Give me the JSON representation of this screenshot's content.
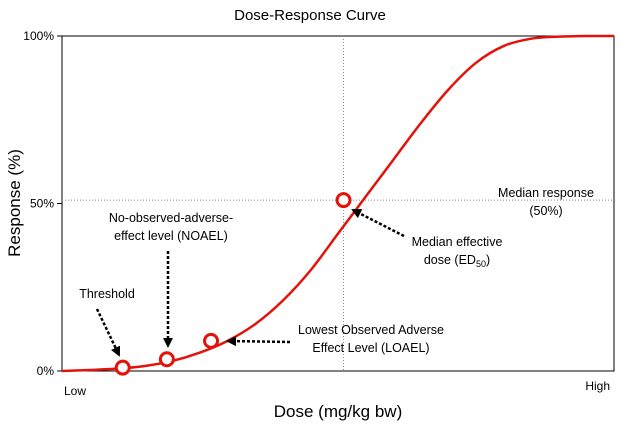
{
  "chart_data": {
    "type": "line",
    "title": "Dose-Response Curve",
    "xlabel": "Dose (mg/kg bw)",
    "ylabel": "Response (%)",
    "x_tick_labels": [
      "Low",
      "High"
    ],
    "y_ticks": [
      {
        "value": 0,
        "label": "0%"
      },
      {
        "value": 50,
        "label": "50%"
      },
      {
        "value": 100,
        "label": "100%"
      }
    ],
    "xlim": [
      0,
      100
    ],
    "ylim": [
      0,
      100
    ],
    "grid": false,
    "colors": {
      "curve": "#e3120b",
      "marker_fill": "#ffffff",
      "reference_lines": "#888888",
      "arrow": "#000000"
    },
    "series": [
      {
        "x": [
          0,
          5,
          10,
          15,
          20,
          25,
          30,
          35,
          40,
          45,
          50,
          55,
          60,
          65,
          70,
          75,
          80,
          85,
          90,
          95,
          100
        ],
        "y": [
          0,
          0.3,
          0.7,
          1.5,
          3,
          5.5,
          9,
          14,
          21,
          30,
          41,
          52,
          63,
          74,
          84,
          92,
          97,
          99.2,
          99.8,
          100,
          100
        ]
      }
    ],
    "points": [
      {
        "name": "threshold",
        "x": 11,
        "y": 1
      },
      {
        "name": "noael",
        "x": 19,
        "y": 3.5
      },
      {
        "name": "loael",
        "x": 27,
        "y": 9
      },
      {
        "name": "ed50",
        "x": 51,
        "y": 51
      }
    ],
    "reference_lines": {
      "x": 51,
      "y": 51
    },
    "annotations": {
      "threshold": {
        "lines": [
          "Threshold"
        ]
      },
      "noael": {
        "lines": [
          "No-observed-adverse-",
          "effect level (NOAEL)"
        ]
      },
      "loael": {
        "lines": [
          "Lowest Observed Adverse",
          "Effect Level (LOAEL)"
        ]
      },
      "ed50": {
        "lines": [
          "Median effective",
          "dose (ED",
          "50",
          ")"
        ]
      },
      "median_response": {
        "lines": [
          "Median response",
          "(50%)"
        ]
      }
    }
  }
}
